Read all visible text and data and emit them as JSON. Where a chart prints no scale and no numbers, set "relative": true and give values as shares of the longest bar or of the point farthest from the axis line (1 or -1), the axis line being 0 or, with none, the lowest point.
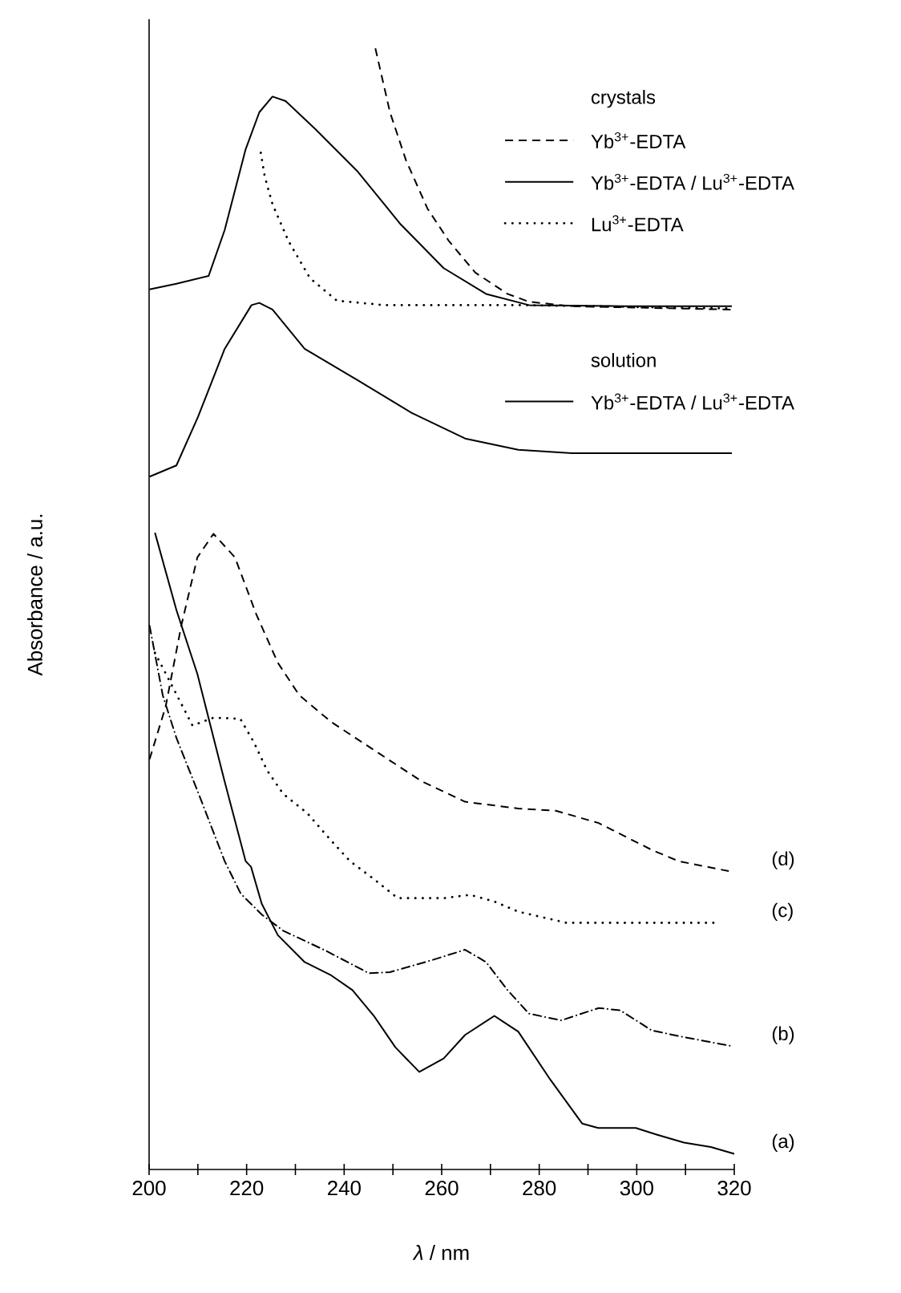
{
  "chart_data": {
    "type": "line",
    "relative": true,
    "xlabel": "*λ* / nm",
    "ylabel": "Absorbance / a.u.",
    "xlim": [
      200,
      320
    ],
    "xticks": [
      200,
      {
        "value": 210,
        "label": null
      },
      220,
      {
        "value": 230,
        "label": null
      },
      240,
      {
        "value": 250,
        "label": null
      },
      260,
      {
        "value": 270,
        "label": null
      },
      280,
      {
        "value": 290,
        "label": null
      },
      300,
      {
        "value": 310,
        "label": null
      },
      320
    ],
    "legend": "top right",
    "annotations": [
      "crystals",
      "solution"
    ],
    "series": [
      {
        "name": "Yb$^{3+}$-EDTA",
        "color": "#000000",
        "line_style": "dashed",
        "x": [
          246.4,
          249.4,
          252.7,
          257.1,
          261.5,
          266.9,
          273.5,
          277.9,
          286.7,
          319.5
        ],
        "values": [
          1.0,
          0.943,
          0.9,
          0.857,
          0.828,
          0.8,
          0.781,
          0.774,
          0.77,
          0.767
        ]
      },
      {
        "name": "Yb$^{3+}$-EDTA / Lu$^{3+}$-EDTA",
        "color": "#000000",
        "line_style": "solid",
        "x": [
          200.1,
          205.6,
          212.2,
          215.5,
          219.8,
          222.6,
          225.3,
          228.0,
          234.1,
          242.8,
          251.6,
          260.4,
          269.1,
          277.9,
          297.6,
          319.5
        ],
        "values": [
          0.785,
          0.79,
          0.797,
          0.838,
          0.91,
          0.943,
          0.957,
          0.953,
          0.928,
          0.89,
          0.843,
          0.804,
          0.781,
          0.771,
          0.77,
          0.77
        ]
      },
      {
        "name": "Lu$^{3+}$-EDTA",
        "color": "#000000",
        "line_style": "dotted",
        "x": [
          222.9,
          223.7,
          225.3,
          228.6,
          233.0,
          238.5,
          248.3,
          275.7,
          319.5
        ],
        "values": [
          0.907,
          0.886,
          0.861,
          0.828,
          0.795,
          0.775,
          0.771,
          0.771,
          0.768
        ]
      },
      {
        "name": "Yb$^{3+}$-EDTA / Lu$^{3+}$-EDTA",
        "color": "#000000",
        "line_style": "solid",
        "x": [
          200.1,
          205.6,
          210.0,
          215.5,
          221.0,
          222.6,
          225.3,
          231.9,
          242.8,
          253.8,
          264.8,
          275.7,
          286.7,
          319.5
        ],
        "values": [
          0.618,
          0.628,
          0.671,
          0.732,
          0.771,
          0.773,
          0.767,
          0.732,
          0.704,
          0.675,
          0.652,
          0.642,
          0.639,
          0.639
        ]
      },
      {
        "name": "(a)",
        "color": "#000000",
        "line_style": "solid",
        "x": [
          201.2,
          205.6,
          209.9,
          215.5,
          219.8,
          220.9,
          223.1,
          226.4,
          231.9,
          237.4,
          241.7,
          246.1,
          250.5,
          255.4,
          260.4,
          264.8,
          270.8,
          275.7,
          282.3,
          288.8,
          292.1,
          299.8,
          304.2,
          309.7,
          315.2,
          320
        ],
        "values": [
          0.568,
          0.499,
          0.442,
          0.346,
          0.275,
          0.27,
          0.237,
          0.209,
          0.185,
          0.173,
          0.16,
          0.137,
          0.109,
          0.087,
          0.099,
          0.12,
          0.137,
          0.123,
          0.08,
          0.041,
          0.037,
          0.037,
          0.031,
          0.024,
          0.02,
          0.014
        ]
      },
      {
        "name": "(b)",
        "color": "#000000",
        "line_style": "dashdot",
        "x": [
          200.1,
          202.8,
          205.6,
          209.9,
          215.5,
          218.8,
          223.2,
          227.5,
          236.3,
          245.1,
          249.4,
          258.2,
          264.8,
          269.1,
          273.5,
          277.9,
          284.5,
          292.2,
          296.6,
          303.1,
          308.6,
          319.5
        ],
        "values": [
          0.485,
          0.423,
          0.385,
          0.338,
          0.275,
          0.246,
          0.227,
          0.213,
          0.195,
          0.175,
          0.176,
          0.187,
          0.196,
          0.185,
          0.16,
          0.139,
          0.133,
          0.144,
          0.142,
          0.124,
          0.119,
          0.11
        ]
      },
      {
        "name": "(c)",
        "color": "#000000",
        "line_style": "dotted",
        "x": [
          201.2,
          208.9,
          213.2,
          218.7,
          221.5,
          224.2,
          227.5,
          232.4,
          236.8,
          241.2,
          246.1,
          251.0,
          260.4,
          265.8,
          270.8,
          275.7,
          285.6,
          316.2
        ],
        "values": [
          0.461,
          0.396,
          0.403,
          0.402,
          0.381,
          0.356,
          0.335,
          0.318,
          0.296,
          0.275,
          0.259,
          0.242,
          0.242,
          0.245,
          0.239,
          0.23,
          0.22,
          0.22
        ]
      },
      {
        "name": "(d)",
        "color": "#000000",
        "line_style": "dashed",
        "x": [
          200.1,
          203.4,
          206.6,
          209.9,
          213.2,
          217.6,
          222.0,
          226.4,
          230.8,
          237.4,
          247.2,
          256.0,
          264.8,
          275.7,
          283.4,
          292.2,
          303.1,
          308.6,
          319.0
        ],
        "values": [
          0.366,
          0.413,
          0.485,
          0.546,
          0.567,
          0.546,
          0.495,
          0.452,
          0.423,
          0.399,
          0.371,
          0.346,
          0.328,
          0.322,
          0.32,
          0.309,
          0.285,
          0.275,
          0.266
        ]
      }
    ]
  }
}
